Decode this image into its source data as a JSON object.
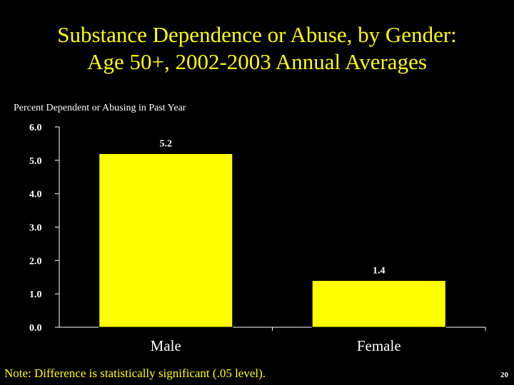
{
  "slide": {
    "title_line1": "Substance Dependence or Abuse, by Gender:",
    "title_line2": "Age 50+, 2002-2003 Annual Averages",
    "footnote": "Note: Difference is statistically significant (.05 level).",
    "page_number": "20"
  },
  "colors": {
    "background": "#000000",
    "accent": "#FFFF00",
    "axis_text": "#FFFFFF",
    "bar_fill": "#FFFF00",
    "bar_stroke": "#000000"
  },
  "chart_data": {
    "type": "bar",
    "title": "",
    "ylabel": "Percent Dependent or Abusing in Past Year",
    "xlabel": "",
    "categories": [
      "Male",
      "Female"
    ],
    "values": [
      5.2,
      1.4
    ],
    "data_labels": [
      "5.2",
      "1.4"
    ],
    "ylim": [
      0,
      6
    ],
    "yticks": [
      "0.0",
      "1.0",
      "2.0",
      "3.0",
      "4.0",
      "5.0",
      "6.0"
    ],
    "grid": false,
    "legend": "none"
  }
}
